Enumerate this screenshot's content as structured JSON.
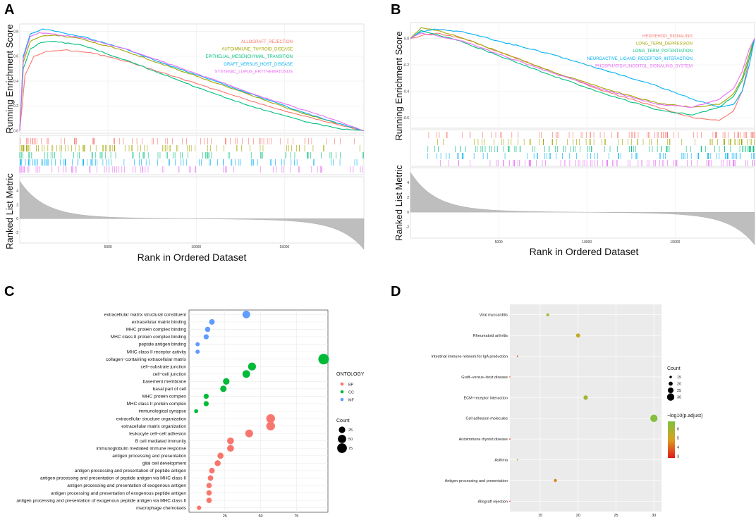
{
  "panels": {
    "A": "A",
    "B": "B",
    "C": "C",
    "D": "D"
  },
  "colors": {
    "red": "#F8766D",
    "olive": "#A3A500",
    "green": "#00BF7D",
    "blue": "#00B0F6",
    "purple": "#E76BF3",
    "ontology_bp": "#F8766D",
    "ontology_cc": "#00BA38",
    "ontology_mf": "#619CFF",
    "grad_low": "#E31A1C",
    "grad_mid": "#D9A020",
    "grad_high": "#7CC43F",
    "panel_d_bg": "#EBEBEB"
  },
  "chart_data": [
    {
      "id": "A",
      "type": "line",
      "ylabel": "Running Enrichment Score",
      "ylabel_bottom": "Ranked List Metric",
      "xlabel": "Rank in Ordered Dataset",
      "x_ticks": [
        "5000",
        "10000",
        "15000"
      ],
      "x_tick_values": [
        5000,
        10000,
        15000
      ],
      "xlim": [
        0,
        19500
      ],
      "y_ticks": [
        "0.0",
        "0.2",
        "0.4",
        "0.6",
        "0.8"
      ],
      "y_tick_values": [
        0,
        0.2,
        0.4,
        0.6,
        0.8
      ],
      "ylim": [
        -0.02,
        0.86
      ],
      "metric_ticks": [
        "4",
        "2",
        "0",
        "-2"
      ],
      "metric_tick_values": [
        4,
        2,
        0,
        -2
      ],
      "metric_lim": [
        -3.5,
        6
      ],
      "series": [
        {
          "name": "ALLOGRAFT_REJECTION",
          "color": "#F8766D",
          "x": [
            0,
            300,
            800,
            1500,
            2500,
            4000,
            6000,
            8000,
            10000,
            12000,
            14000,
            16000,
            18000,
            19500
          ],
          "y": [
            0,
            0.45,
            0.6,
            0.64,
            0.65,
            0.63,
            0.56,
            0.47,
            0.38,
            0.29,
            0.2,
            0.12,
            0.05,
            0
          ]
        },
        {
          "name": "AUTOIMMUNE_THYROID_DISEASE",
          "color": "#A3A500",
          "x": [
            0,
            200,
            600,
            1200,
            2000,
            3500,
            6000,
            8000,
            10000,
            12000,
            14000,
            16000,
            18000,
            19500
          ],
          "y": [
            0,
            0.55,
            0.72,
            0.76,
            0.77,
            0.74,
            0.64,
            0.54,
            0.44,
            0.34,
            0.24,
            0.14,
            0.06,
            0
          ]
        },
        {
          "name": "EPITHELIAL_MESENCHYMAL_TRANSITION",
          "color": "#00BF7D",
          "x": [
            0,
            200,
            600,
            1200,
            2000,
            3500,
            6000,
            8000,
            10000,
            12000,
            14000,
            16000,
            18000,
            19500
          ],
          "y": [
            0,
            0.5,
            0.66,
            0.71,
            0.72,
            0.69,
            0.57,
            0.46,
            0.35,
            0.25,
            0.16,
            0.08,
            0.02,
            0
          ]
        },
        {
          "name": "GRAFT_VERSUS_HOST_DISEASE",
          "color": "#00B0F6",
          "x": [
            0,
            200,
            600,
            1300,
            2000,
            3500,
            6000,
            8000,
            10000,
            12000,
            14000,
            16000,
            18000,
            19500
          ],
          "y": [
            0,
            0.6,
            0.78,
            0.82,
            0.8,
            0.76,
            0.66,
            0.55,
            0.45,
            0.35,
            0.25,
            0.15,
            0.06,
            0
          ]
        },
        {
          "name": "SYSTEMIC_LUPUS_ERYTHEMATOSUS",
          "color": "#E76BF3",
          "x": [
            0,
            200,
            600,
            1100,
            1800,
            3500,
            6000,
            8000,
            10000,
            12000,
            14000,
            16000,
            18000,
            19500
          ],
          "y": [
            0,
            0.58,
            0.76,
            0.79,
            0.78,
            0.75,
            0.66,
            0.56,
            0.46,
            0.36,
            0.26,
            0.17,
            0.08,
            0
          ]
        }
      ]
    },
    {
      "id": "B",
      "type": "line",
      "ylabel": "Running Enrichment Score",
      "ylabel_bottom": "Ranked List Metric",
      "xlabel": "Rank in Ordered Dataset",
      "x_ticks": [
        "5000",
        "10000",
        "15000"
      ],
      "x_tick_values": [
        5000,
        10000,
        15000
      ],
      "xlim": [
        0,
        19500
      ],
      "y_ticks": [
        "0.0",
        "-0.2",
        "-0.4",
        "-0.6"
      ],
      "y_tick_values": [
        0,
        -0.2,
        -0.4,
        -0.6
      ],
      "ylim": [
        -0.68,
        0.12
      ],
      "metric_ticks": [
        "4",
        "2",
        "0",
        "-2"
      ],
      "metric_tick_values": [
        4,
        2,
        0,
        -2
      ],
      "metric_lim": [
        -3.5,
        6
      ],
      "series": [
        {
          "name": "HEDGEHOG_SIGNALING",
          "color": "#F8766D",
          "x": [
            0,
            600,
            1500,
            3000,
            5000,
            8000,
            11000,
            14000,
            16000,
            17500,
            18300,
            18800,
            19200,
            19500
          ],
          "y": [
            0,
            0.02,
            0.04,
            0.0,
            -0.1,
            -0.25,
            -0.4,
            -0.52,
            -0.6,
            -0.62,
            -0.55,
            -0.4,
            -0.15,
            0
          ]
        },
        {
          "name": "LONG_TERM_DEPRESSION",
          "color": "#A3A500",
          "x": [
            0,
            600,
            1500,
            3000,
            5000,
            8000,
            11000,
            14000,
            16000,
            17500,
            18300,
            18800,
            19200,
            19500
          ],
          "y": [
            0,
            0.08,
            0.06,
            0.0,
            -0.1,
            -0.25,
            -0.38,
            -0.49,
            -0.52,
            -0.5,
            -0.42,
            -0.3,
            -0.12,
            0
          ]
        },
        {
          "name": "LONG_TERM_POTENTIATION",
          "color": "#00BF7D",
          "x": [
            0,
            600,
            1500,
            3000,
            5000,
            8000,
            11000,
            14000,
            16000,
            17500,
            18300,
            18800,
            19200,
            19500
          ],
          "y": [
            0,
            0.06,
            0.03,
            -0.03,
            -0.13,
            -0.28,
            -0.42,
            -0.54,
            -0.58,
            -0.52,
            -0.44,
            -0.32,
            -0.15,
            0
          ]
        },
        {
          "name": "NEUROACTIVE_LIGAND_RECEPTOR_INTERACTION",
          "color": "#00B0F6",
          "x": [
            0,
            600,
            1500,
            3000,
            5000,
            8000,
            11000,
            14000,
            16000,
            17500,
            18300,
            18800,
            19200,
            19500
          ],
          "y": [
            0,
            0.05,
            0.07,
            0.05,
            -0.02,
            -0.12,
            -0.24,
            -0.36,
            -0.46,
            -0.52,
            -0.5,
            -0.4,
            -0.2,
            0
          ]
        },
        {
          "name": "PHOSPHATIDYLINOSITOL_SIGNALING_SYSTEM",
          "color": "#E76BF3",
          "x": [
            0,
            600,
            1500,
            3000,
            5000,
            8000,
            11000,
            14000,
            16000,
            17500,
            18300,
            18800,
            19200,
            19500
          ],
          "y": [
            0,
            0.04,
            0.02,
            -0.02,
            -0.12,
            -0.26,
            -0.39,
            -0.5,
            -0.52,
            -0.46,
            -0.38,
            -0.25,
            -0.08,
            0
          ]
        }
      ]
    },
    {
      "id": "C",
      "type": "scatter",
      "xlim": [
        0,
        97
      ],
      "x_ticks": [
        "25",
        "50",
        "75"
      ],
      "x_tick_values": [
        25,
        50,
        75
      ],
      "legend_ontology_title": "ONTOLOGY",
      "legend_ontology": [
        "BP",
        "CC",
        "MF"
      ],
      "legend_count_title": "Count",
      "legend_count": [
        "25",
        "50",
        "75"
      ],
      "legend_count_values": [
        25,
        50,
        75
      ],
      "categories": [
        {
          "label": "extracellular matrix structural constituent",
          "value": 40,
          "ont": "MF"
        },
        {
          "label": "extracellular matrix binding",
          "value": 16,
          "ont": "MF"
        },
        {
          "label": "MHC protein complex binding",
          "value": 13,
          "ont": "MF"
        },
        {
          "label": "MHC class II protein complex binding",
          "value": 12,
          "ont": "MF"
        },
        {
          "label": "peptide antigen binding",
          "value": 6,
          "ont": "MF"
        },
        {
          "label": "MHC class II receptor activity",
          "value": 6,
          "ont": "MF"
        },
        {
          "label": "collagen−containing extracellular matrix",
          "value": 94,
          "ont": "CC"
        },
        {
          "label": "cell−substrate junction",
          "value": 44,
          "ont": "CC"
        },
        {
          "label": "cell−cell junction",
          "value": 40,
          "ont": "CC"
        },
        {
          "label": "basement membrane",
          "value": 26,
          "ont": "CC"
        },
        {
          "label": "basal part of cell",
          "value": 24,
          "ont": "CC"
        },
        {
          "label": "MHC protein complex",
          "value": 12,
          "ont": "CC"
        },
        {
          "label": "MHC class II protein complex",
          "value": 12,
          "ont": "CC"
        },
        {
          "label": "immunological synapse",
          "value": 5,
          "ont": "CC"
        },
        {
          "label": "extracellular structure organization",
          "value": 57,
          "ont": "BP"
        },
        {
          "label": "extracellular matrix organization",
          "value": 57,
          "ont": "BP"
        },
        {
          "label": "leukocyte cell−cell adhesion",
          "value": 42,
          "ont": "BP"
        },
        {
          "label": "B cell mediated immunity",
          "value": 29,
          "ont": "BP"
        },
        {
          "label": "immunoglobulin mediated immune response",
          "value": 29,
          "ont": "BP"
        },
        {
          "label": "antigen processing and presentation",
          "value": 22,
          "ont": "BP"
        },
        {
          "label": "glial cell development",
          "value": 20,
          "ont": "BP"
        },
        {
          "label": "antigen processing and presentation of peptide antigen",
          "value": 16,
          "ont": "BP"
        },
        {
          "label": "antigen processing and presentation of peptide antigen via MHC class II",
          "value": 15,
          "ont": "BP"
        },
        {
          "label": "antigen processing and presentation of exogenous antigen",
          "value": 14,
          "ont": "BP"
        },
        {
          "label": "antigen processing and presentation of exogenous peptide antigen",
          "value": 14,
          "ont": "BP"
        },
        {
          "label": "antigen processing and presentation of exogenous peptide antigen via MHC class II",
          "value": 14,
          "ont": "BP"
        },
        {
          "label": "macrophage chemotaxis",
          "value": 7,
          "ont": "BP"
        }
      ]
    },
    {
      "id": "D",
      "type": "scatter",
      "xlim": [
        11,
        31
      ],
      "x_ticks": [
        "15",
        "20",
        "25",
        "30"
      ],
      "x_tick_values": [
        15,
        20,
        25,
        30
      ],
      "legend_count_title": "Count",
      "legend_count": [
        "15",
        "20",
        "25",
        "30"
      ],
      "legend_count_values": [
        15,
        20,
        25,
        30
      ],
      "legend_color_title": "−log10(p.adjust)",
      "legend_color_ticks": [
        "6",
        "5",
        "4",
        "3"
      ],
      "legend_color_values": [
        6,
        5,
        4,
        3
      ],
      "color_lim": [
        2.8,
        6.8
      ],
      "categories": [
        {
          "label": "Viral myocarditis",
          "value": 16,
          "padj": 5.8
        },
        {
          "label": "Rheumatoid arthritis",
          "value": 20,
          "padj": 5.2
        },
        {
          "label": "Intestinal immune network for IgA production",
          "value": 12,
          "padj": 3.4
        },
        {
          "label": "Graft−versus−host disease",
          "value": 11,
          "padj": 3.6
        },
        {
          "label": "ECM−receptor interaction",
          "value": 21,
          "padj": 6.0
        },
        {
          "label": "Cell adhesion molecules",
          "value": 30,
          "padj": 6.6
        },
        {
          "label": "Autoimmune thyroid disease",
          "value": 11,
          "padj": 2.9
        },
        {
          "label": "Asthma",
          "value": 12,
          "padj": 5.6
        },
        {
          "label": "Antigen processing and presentation",
          "value": 17,
          "padj": 4.4
        },
        {
          "label": "Allograft rejection",
          "value": 11,
          "padj": 3.2
        }
      ]
    }
  ]
}
